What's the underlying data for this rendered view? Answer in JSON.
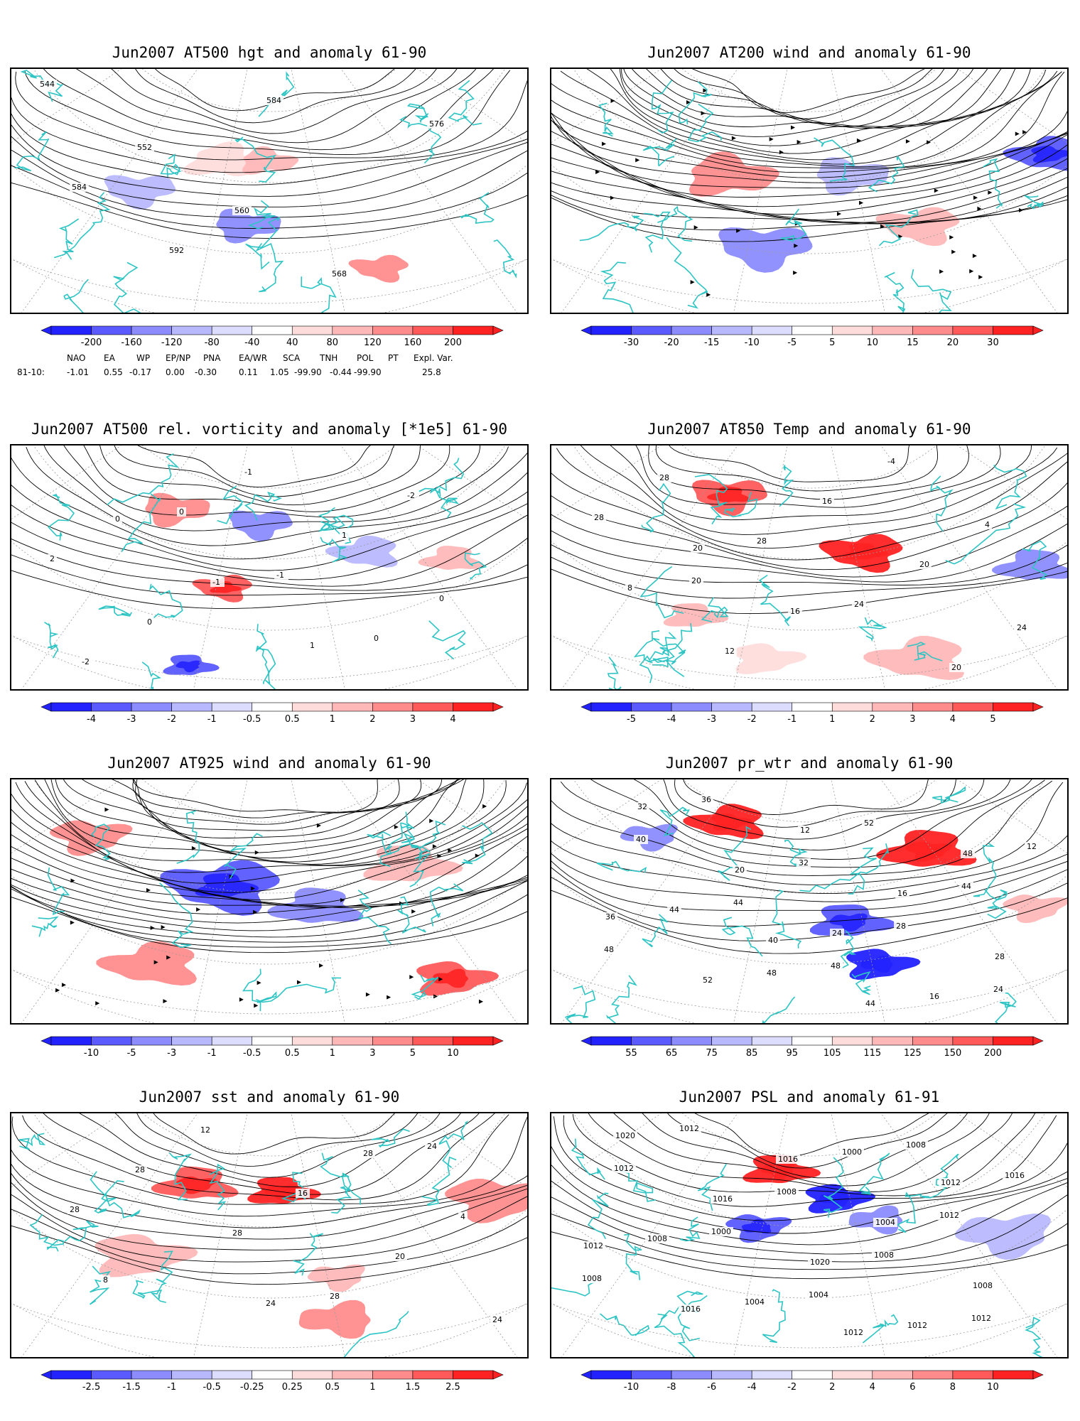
{
  "colors": {
    "coast": "#2ec4c4",
    "contour": "#000000",
    "grid": "#9a9a9a",
    "blue_levels": [
      "#2222ff",
      "#5a5aff",
      "#8c8cff",
      "#b8b8ff",
      "#dcdcff"
    ],
    "red_levels": [
      "#ffdcdc",
      "#ffb8b8",
      "#ff8c8c",
      "#ff5a5a",
      "#ff2222"
    ]
  },
  "panels": [
    {
      "id": "z500",
      "title": "Jun2007 AT500 hgt and anomaly 61-90",
      "map_height": 343,
      "colorbar_labels": [
        "-200",
        "-160",
        "-120",
        "-80",
        "-40",
        "40",
        "80",
        "120",
        "160",
        "200"
      ],
      "contour_labels": [
        "544",
        "552",
        "560",
        "568",
        "576",
        "584",
        "592",
        "584"
      ]
    },
    {
      "id": "w200",
      "title": "Jun2007 AT200 wind and anomaly 61-90",
      "map_height": 343,
      "colorbar_labels": [
        "-30",
        "-20",
        "-15",
        "-10",
        "-5",
        "5",
        "10",
        "15",
        "20",
        "30"
      ],
      "contour_labels": []
    },
    {
      "id": "vort500",
      "title": "Jun2007 AT500 rel. vorticity and anomaly [*1e5] 61-90",
      "map_height": 343,
      "colorbar_labels": [
        "-4",
        "-3",
        "-2",
        "-1",
        "-0.5",
        "0.5",
        "1",
        "2",
        "3",
        "4"
      ],
      "contour_labels": [
        "0",
        "-1",
        "1",
        "-2",
        "2",
        "0",
        "-1",
        "1",
        "0",
        "-2",
        "0",
        "-1",
        "0"
      ]
    },
    {
      "id": "t850",
      "title": "Jun2007 AT850 Temp and anomaly 61-90",
      "map_height": 343,
      "colorbar_labels": [
        "-5",
        "-4",
        "-3",
        "-2",
        "-1",
        "1",
        "2",
        "3",
        "4",
        "5"
      ],
      "contour_labels": [
        "20",
        "16",
        "-4",
        "4",
        "8",
        "12",
        "16",
        "20",
        "24",
        "28",
        "28",
        "24",
        "20",
        "28",
        "20"
      ]
    },
    {
      "id": "w925",
      "title": "Jun2007 AT925 wind and anomaly 61-90",
      "map_height": 343,
      "colorbar_labels": [
        "-10",
        "-5",
        "-3",
        "-1",
        "-0.5",
        "0.5",
        "1",
        "3",
        "5",
        "10"
      ],
      "contour_labels": []
    },
    {
      "id": "prwtr",
      "title": "Jun2007 pr_wtr and anomaly 61-90",
      "map_height": 343,
      "colorbar_labels": [
        "55",
        "65",
        "75",
        "85",
        "95",
        "105",
        "115",
        "125",
        "150",
        "200"
      ],
      "contour_labels": [
        "40",
        "44",
        "48",
        "36",
        "52",
        "12",
        "16",
        "28",
        "32",
        "20",
        "24",
        "16",
        "12",
        "44",
        "48",
        "52",
        "44",
        "48",
        "36",
        "32",
        "28",
        "24",
        "40",
        "44",
        "48"
      ]
    },
    {
      "id": "sst",
      "title": "Jun2007 sst and anomaly 61-90",
      "map_height": 343,
      "colorbar_labels": [
        "-2.5",
        "-1.5",
        "-1",
        "-0.5",
        "-0.25",
        "0.25",
        "0.5",
        "1",
        "1.5",
        "2.5"
      ],
      "contour_labels": [
        "24",
        "28",
        "4",
        "8",
        "12",
        "16",
        "20",
        "24",
        "28",
        "28",
        "28",
        "24",
        "28"
      ]
    },
    {
      "id": "psl",
      "title": "Jun2007 PSL and anomaly 61-91",
      "map_height": 343,
      "colorbar_labels": [
        "-10",
        "-8",
        "-6",
        "-4",
        "-2",
        "2",
        "4",
        "6",
        "8",
        "10"
      ],
      "contour_labels": [
        "1012",
        "1012",
        "1012",
        "1016",
        "1016",
        "1004",
        "1008",
        "1020",
        "1016",
        "1020",
        "1012",
        "1016",
        "1008",
        "1004",
        "1000",
        "1012",
        "1008",
        "1012",
        "1008",
        "1008",
        "1012",
        "1012",
        "1000",
        "1004",
        "1008"
      ]
    }
  ],
  "teleconnections": {
    "names": [
      "NAO",
      "EA",
      "WP",
      "EP/NP",
      "PNA",
      "EA/WR",
      "SCA",
      "TNH",
      "POL",
      "PT",
      "Expl. Var."
    ],
    "row_label": "81-10:",
    "values": [
      "-1.01",
      "0.55",
      "-0.17",
      "0.00",
      "-0.30",
      "0.11",
      "1.05",
      "-99.90",
      "-0.44",
      "-99.90",
      "25.8"
    ]
  }
}
